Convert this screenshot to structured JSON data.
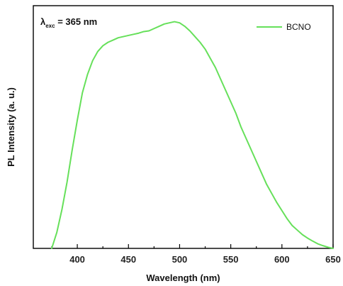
{
  "chart_data": {
    "type": "line",
    "xlabel": "Wavelength (nm)",
    "ylabel": "PL Intensity (a. u.)",
    "xlim": [
      357,
      650
    ],
    "ylim": [
      0,
      1.06
    ],
    "xticks": [
      400,
      450,
      500,
      550,
      600,
      650
    ],
    "yticks_visible": false,
    "grid": false,
    "legend_position": "top-right",
    "annotation": {
      "lambda": "λ",
      "subscript": "exc",
      "rest": " = 365 nm"
    },
    "series": [
      {
        "name": "BCNO",
        "color": "#66e05a",
        "x": [
          375,
          380,
          385,
          390,
          395,
          400,
          405,
          410,
          415,
          420,
          425,
          430,
          435,
          440,
          445,
          450,
          455,
          460,
          465,
          470,
          475,
          480,
          485,
          490,
          495,
          500,
          505,
          510,
          515,
          520,
          525,
          530,
          535,
          540,
          545,
          550,
          555,
          560,
          565,
          570,
          575,
          580,
          585,
          590,
          595,
          600,
          605,
          610,
          615,
          620,
          625,
          630,
          635,
          640,
          645,
          650
        ],
        "y": [
          0.0,
          0.07,
          0.17,
          0.29,
          0.43,
          0.56,
          0.68,
          0.76,
          0.82,
          0.86,
          0.885,
          0.9,
          0.91,
          0.92,
          0.925,
          0.93,
          0.935,
          0.94,
          0.947,
          0.95,
          0.96,
          0.97,
          0.98,
          0.985,
          0.99,
          0.985,
          0.97,
          0.95,
          0.925,
          0.9,
          0.87,
          0.83,
          0.79,
          0.74,
          0.69,
          0.64,
          0.59,
          0.53,
          0.48,
          0.43,
          0.38,
          0.33,
          0.28,
          0.24,
          0.2,
          0.165,
          0.13,
          0.1,
          0.08,
          0.06,
          0.045,
          0.032,
          0.02,
          0.012,
          0.005,
          0.0
        ]
      }
    ]
  }
}
